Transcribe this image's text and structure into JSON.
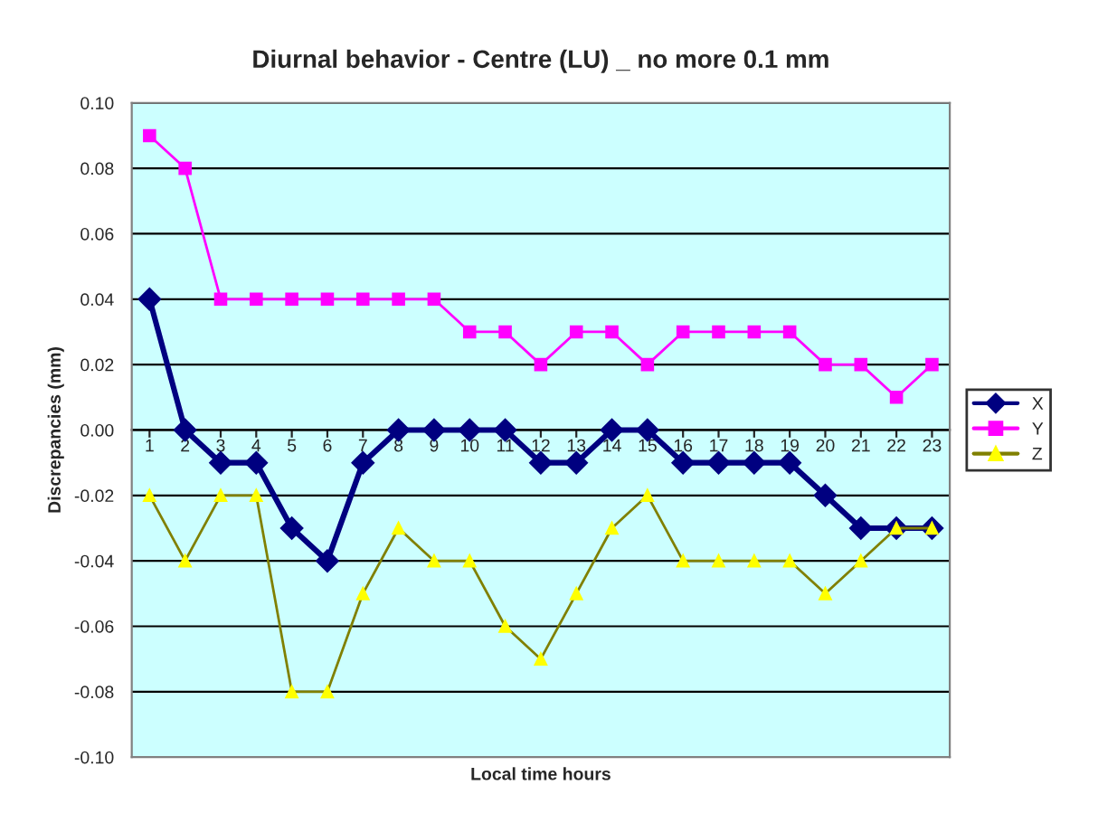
{
  "chart_data": {
    "type": "line",
    "title": "Diurnal behavior - Centre (LU) _ no more 0.1 mm",
    "xlabel": "Local time hours",
    "ylabel": "Discrepancies (mm)",
    "categories": [
      "1",
      "2",
      "3",
      "4",
      "5",
      "6",
      "7",
      "8",
      "9",
      "10",
      "11",
      "12",
      "13",
      "14",
      "15",
      "16",
      "17",
      "18",
      "19",
      "20",
      "21",
      "22",
      "23"
    ],
    "series": [
      {
        "name": "X",
        "color": "#000080",
        "marker": "diamond",
        "values": [
          0.04,
          0,
          -0.01,
          -0.01,
          -0.03,
          -0.04,
          -0.01,
          0,
          0,
          0,
          0,
          -0.01,
          -0.01,
          0,
          0,
          -0.01,
          -0.01,
          -0.01,
          -0.01,
          -0.02,
          -0.03,
          -0.03,
          -0.03
        ]
      },
      {
        "name": "Y",
        "color": "#ff00ff",
        "marker": "square",
        "values": [
          0.09,
          0.08,
          0.04,
          0.04,
          0.04,
          0.04,
          0.04,
          0.04,
          0.04,
          0.03,
          0.03,
          0.02,
          0.03,
          0.03,
          0.02,
          0.03,
          0.03,
          0.03,
          0.03,
          0.02,
          0.02,
          0.01,
          0.02
        ]
      },
      {
        "name": "Z",
        "color": "#808000",
        "marker": "triangle",
        "values": [
          -0.02,
          -0.04,
          -0.02,
          -0.02,
          -0.08,
          -0.08,
          -0.05,
          -0.03,
          -0.04,
          -0.04,
          -0.06,
          -0.07,
          -0.05,
          -0.03,
          -0.02,
          -0.04,
          -0.04,
          -0.04,
          -0.04,
          -0.05,
          -0.04,
          -0.03,
          -0.03
        ]
      }
    ],
    "ylim": [
      -0.1,
      0.1
    ],
    "yticks": [
      {
        "value": -0.1,
        "label": "-0.10"
      },
      {
        "value": -0.08,
        "label": "-0.08"
      },
      {
        "value": -0.06,
        "label": "-0.06"
      },
      {
        "value": -0.04,
        "label": "-0.04"
      },
      {
        "value": -0.02,
        "label": "-0.02"
      },
      {
        "value": 0,
        "label": "0.00"
      },
      {
        "value": 0.02,
        "label": "0.02"
      },
      {
        "value": 0.04,
        "label": "0.04"
      },
      {
        "value": 0.06,
        "label": "0.06"
      },
      {
        "value": 0.08,
        "label": "0.08"
      },
      {
        "value": 0.1,
        "label": "0.10"
      }
    ],
    "grid": "y",
    "legend": "right"
  }
}
